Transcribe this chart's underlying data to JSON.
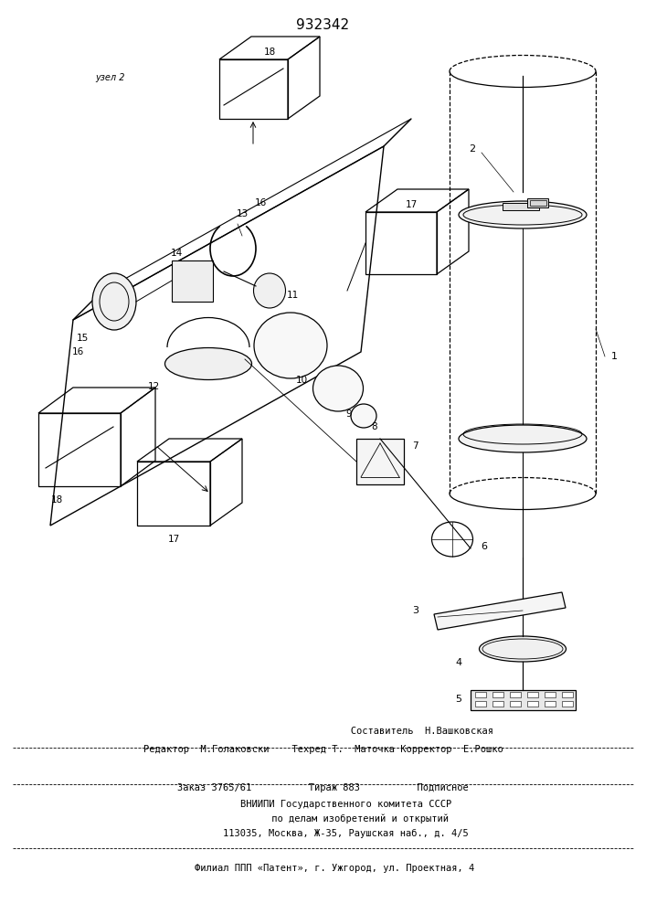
{
  "title": "932342",
  "bg_color": "#ffffff",
  "line_color": "#000000",
  "footer": {
    "line1": "                   Составитель  Н.Вашковская",
    "line2": "Редактор  М.Голаковски    Техред Т.  Маточка Корректор  Е.Рошко",
    "line3": "Заказ 3765/61          Тираж 883          Подписное",
    "line4": "        ВНИИПИ Государственного комитета СССР",
    "line5": "             по делам изобретений и открытий",
    "line6": "        113035, Москва, Ж-35, Раушская наб., д. 4/5",
    "line7": "    Филиал ППП «Патент», г. Ужгород, ул. Проектная, 4"
  }
}
